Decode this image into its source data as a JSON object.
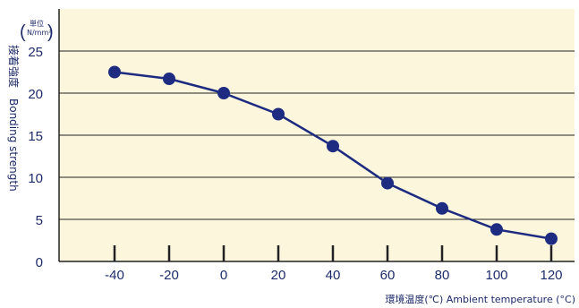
{
  "chart_data": {
    "type": "line",
    "x": [
      -40,
      -20,
      0,
      20,
      40,
      60,
      80,
      100,
      120
    ],
    "series": [
      {
        "values": [
          22.5,
          21.7,
          20.0,
          17.5,
          13.7,
          9.3,
          6.3,
          3.8,
          2.7
        ]
      }
    ],
    "x_ticks": [
      "-40",
      "-20",
      "0",
      "20",
      "40",
      "60",
      "80",
      "100",
      "120"
    ],
    "y_ticks": [
      "0",
      "5",
      "10",
      "15",
      "20",
      "25"
    ],
    "xlim": [
      -60,
      130
    ],
    "ylim": [
      0,
      30
    ],
    "unit_line1": "単位",
    "unit_line2": "N/mm²",
    "ylabel_jp": "接着強度",
    "ylabel_en": "Bonding strength",
    "xlabel": "環境温度(℃) Ambient temperature (°C)",
    "grid": true,
    "colors": {
      "plot_background": "#fbf6dc",
      "series": "#1d2b80",
      "axis": "#222222",
      "text": "#1d2b6b"
    }
  }
}
